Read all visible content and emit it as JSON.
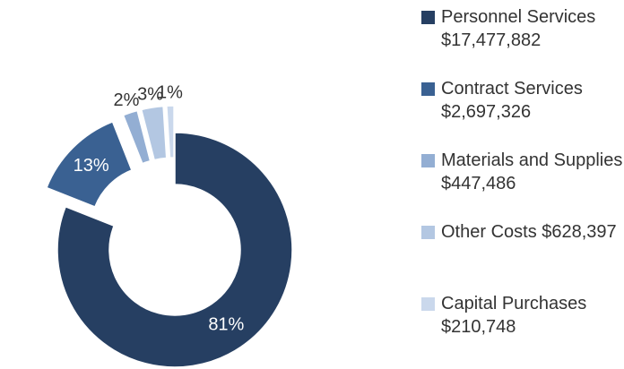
{
  "chart_data": {
    "type": "pie",
    "categories": [
      "Personnel Services $17,477,882",
      "Contract Services $2,697,326",
      "Materials and Supplies $447,486",
      "Other Costs $628,397",
      "Capital Purchases $210,748"
    ],
    "values": [
      81,
      13,
      2,
      3,
      1
    ],
    "value_labels": [
      "81%",
      "13%",
      "2%",
      "3%",
      "1%"
    ],
    "colors": [
      "#263f62",
      "#3a6192",
      "#93aed3",
      "#b3c7e2",
      "#cad8ec"
    ],
    "donut": true
  }
}
